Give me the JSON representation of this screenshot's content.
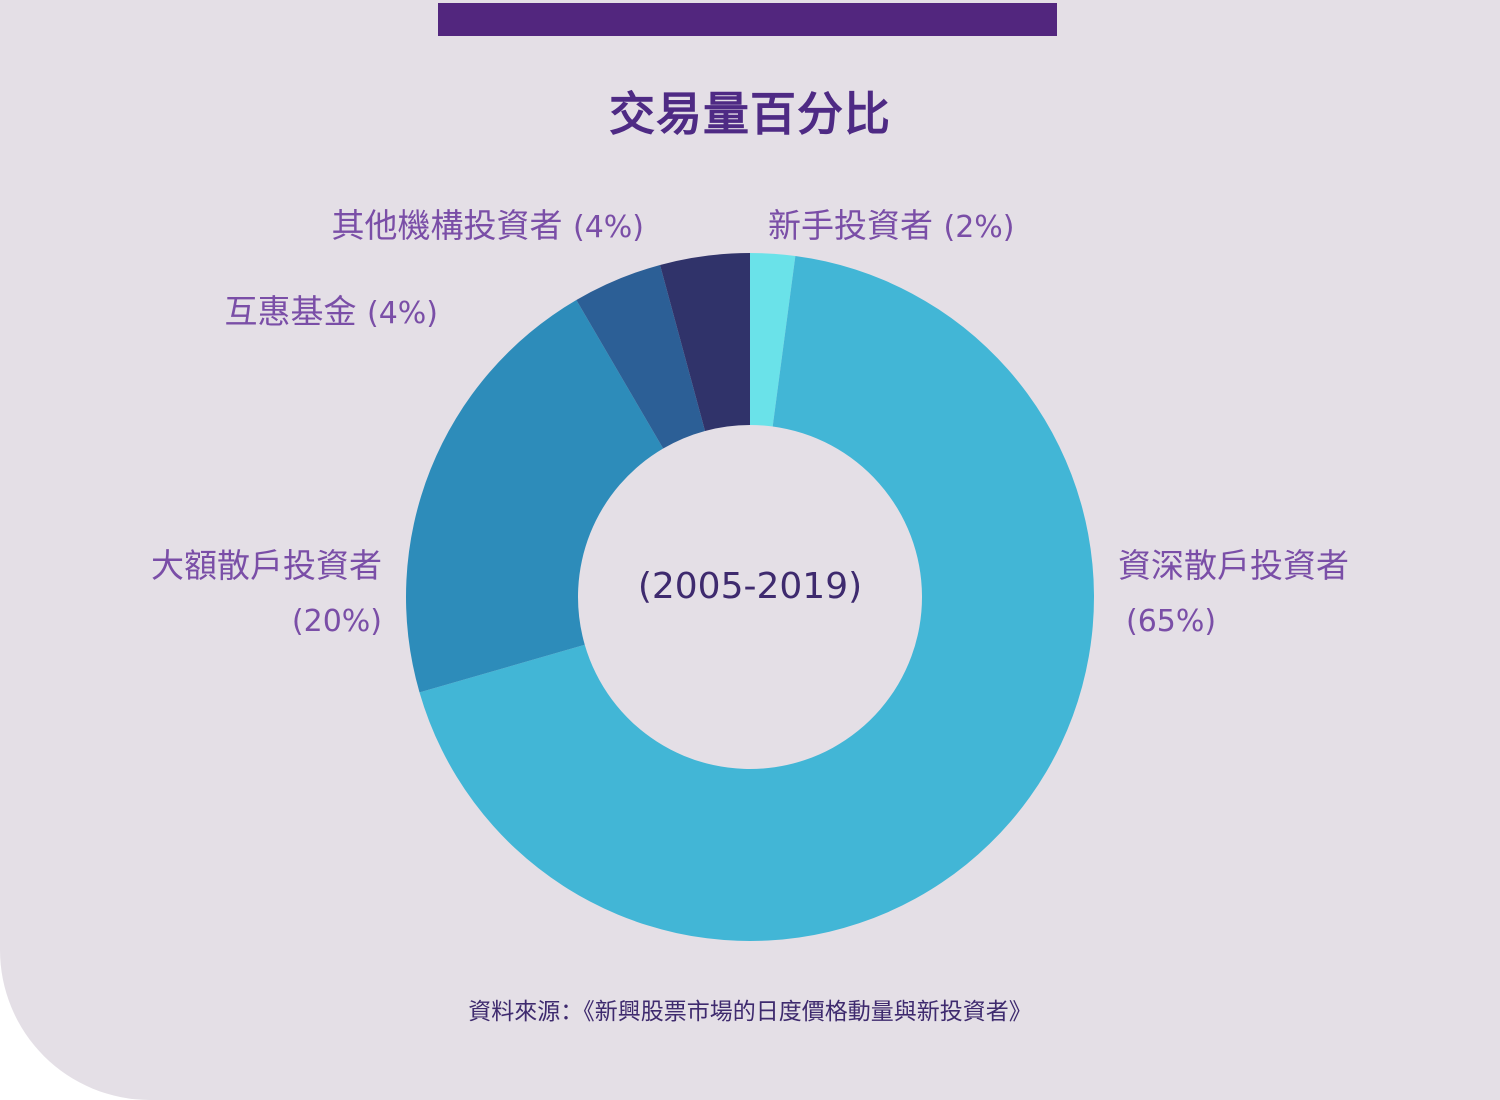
{
  "colors": {
    "background": "#e4dfe6",
    "accent": "#52267e",
    "title": "#4e2a84",
    "label": "#7a4ea7",
    "dark_text": "#3e2a6e"
  },
  "chart_data": {
    "type": "pie",
    "variant": "donut",
    "title": "交易量百分比",
    "center_label": "(2005-2019)",
    "source": "資料來源：《新興股票市場的日度價格動量與新投資者》",
    "slices": [
      {
        "name": "新手投資者",
        "pct_label": "(2%)",
        "value": 2,
        "color": "#6ae2e9"
      },
      {
        "name": "資深散戶投資者",
        "pct_label": "(65%)",
        "value": 65,
        "color": "#42b6d6"
      },
      {
        "name": "大額散戶投資者",
        "pct_label": "(20%)",
        "value": 20,
        "color": "#2d8cba"
      },
      {
        "name": "互惠基金",
        "pct_label": "(4%)",
        "value": 4,
        "color": "#2c5f96"
      },
      {
        "name": "其他機構投資者",
        "pct_label": "(4%)",
        "value": 4,
        "color": "#30336a"
      }
    ]
  }
}
